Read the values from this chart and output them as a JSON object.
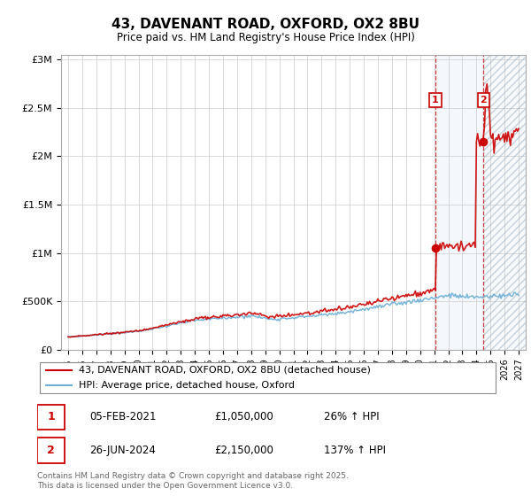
{
  "title": "43, DAVENANT ROAD, OXFORD, OX2 8BU",
  "subtitle": "Price paid vs. HM Land Registry's House Price Index (HPI)",
  "hpi_color": "#6baed6",
  "price_color": "#cc0000",
  "ylabel_ticks": [
    0,
    500000,
    1000000,
    1500000,
    2000000,
    2500000,
    3000000
  ],
  "ylabel_labels": [
    "£0",
    "£500K",
    "£1M",
    "£1.5M",
    "£2M",
    "£2.5M",
    "£3M"
  ],
  "xstart_year": 1995,
  "xend_year": 2027,
  "marker1_year": 2021.09,
  "marker1_price": 1050000,
  "marker2_year": 2024.5,
  "marker2_price": 2150000,
  "legend_line1": "43, DAVENANT ROAD, OXFORD, OX2 8BU (detached house)",
  "legend_line2": "HPI: Average price, detached house, Oxford",
  "note1_date": "05-FEB-2021",
  "note1_price": "£1,050,000",
  "note1_pct": "26% ↑ HPI",
  "note2_date": "26-JUN-2024",
  "note2_price": "£2,150,000",
  "note2_pct": "137% ↑ HPI",
  "footer": "Contains HM Land Registry data © Crown copyright and database right 2025.\nThis data is licensed under the Open Government Licence v3.0."
}
